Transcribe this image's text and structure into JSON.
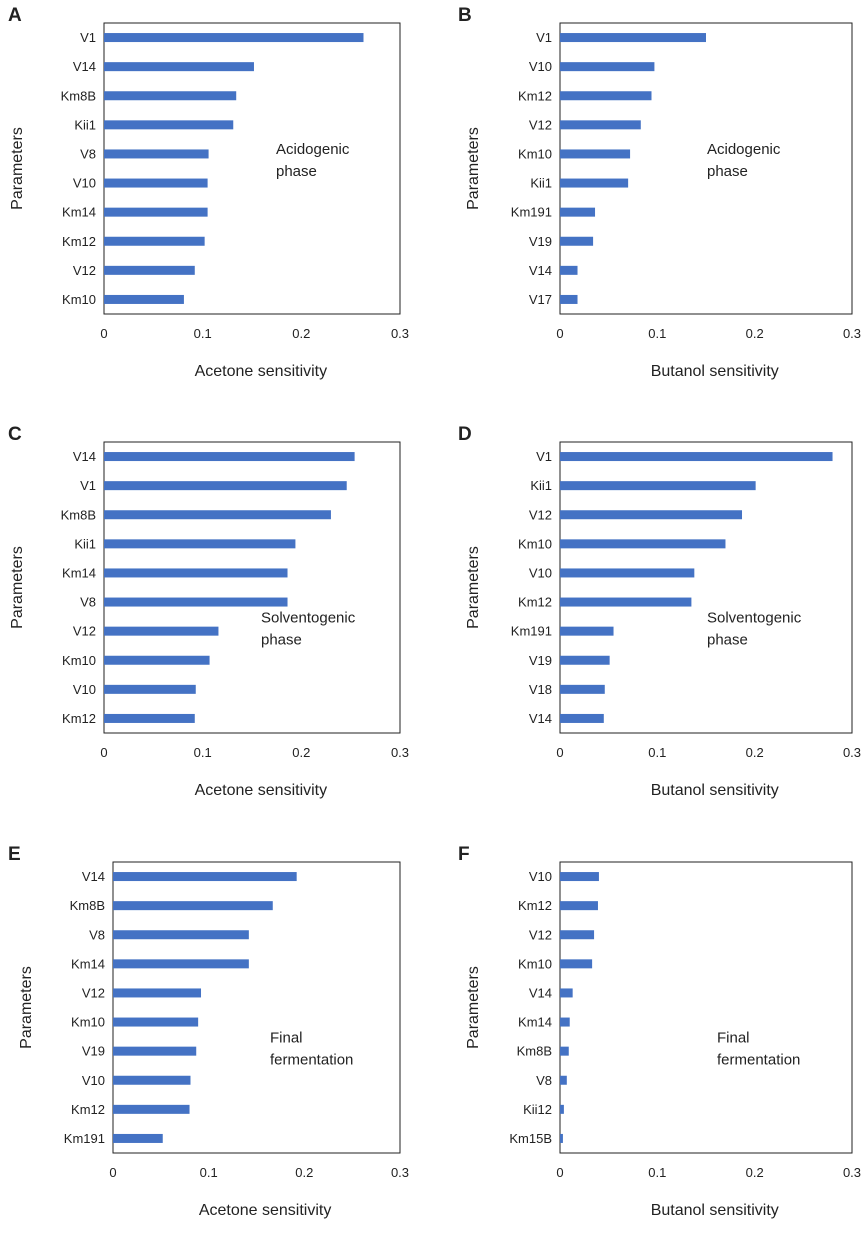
{
  "chart_data": [
    {
      "type": "bar",
      "orientation": "horizontal",
      "panel": "A",
      "categories": [
        "V1",
        "V14",
        "Km8B",
        "Kii1",
        "V8",
        "V10",
        "Km14",
        "Km12",
        "V12",
        "Km10"
      ],
      "values": [
        0.263,
        0.152,
        0.134,
        0.131,
        0.106,
        0.105,
        0.105,
        0.102,
        0.092,
        0.081
      ],
      "xlabel": "Acetone sensitivity",
      "ylabel": "Parameters",
      "xlim": [
        0,
        0.3
      ],
      "xticks": [
        "0",
        "0.1",
        "0.2",
        "0.3"
      ],
      "annotation": [
        "Acidogenic",
        "phase"
      ],
      "color": "#4472c4"
    },
    {
      "type": "bar",
      "orientation": "horizontal",
      "panel": "B",
      "categories": [
        "V1",
        "V10",
        "Km12",
        "V12",
        "Km10",
        "Kii1",
        "Km191",
        "V19",
        "V14",
        "V17"
      ],
      "values": [
        0.15,
        0.097,
        0.094,
        0.083,
        0.072,
        0.07,
        0.036,
        0.034,
        0.018,
        0.018
      ],
      "xlabel": "Butanol sensitivity",
      "ylabel": "Parameters",
      "xlim": [
        0,
        0.3
      ],
      "xticks": [
        "0",
        "0.1",
        "0.2",
        "0.3"
      ],
      "annotation": [
        "Acidogenic",
        "phase"
      ],
      "color": "#4472c4"
    },
    {
      "type": "bar",
      "orientation": "horizontal",
      "panel": "C",
      "categories": [
        "V14",
        "V1",
        "Km8B",
        "Kii1",
        "Km14",
        "V8",
        "V12",
        "Km10",
        "V10",
        "Km12"
      ],
      "values": [
        0.254,
        0.246,
        0.23,
        0.194,
        0.186,
        0.186,
        0.116,
        0.107,
        0.093,
        0.092
      ],
      "xlabel": "Acetone sensitivity",
      "ylabel": "Parameters",
      "xlim": [
        0,
        0.3
      ],
      "xticks": [
        "0",
        "0.1",
        "0.2",
        "0.3"
      ],
      "annotation": [
        "Solventogenic",
        "phase"
      ],
      "color": "#4472c4"
    },
    {
      "type": "bar",
      "orientation": "horizontal",
      "panel": "D",
      "categories": [
        "V1",
        "Kii1",
        "V12",
        "Km10",
        "V10",
        "Km12",
        "Km191",
        "V19",
        "V18",
        "V14"
      ],
      "values": [
        0.28,
        0.201,
        0.187,
        0.17,
        0.138,
        0.135,
        0.055,
        0.051,
        0.046,
        0.045
      ],
      "xlabel": "Butanol sensitivity",
      "ylabel": "Parameters",
      "xlim": [
        0,
        0.3
      ],
      "xticks": [
        "0",
        "0.1",
        "0.2",
        "0.3"
      ],
      "annotation": [
        "Solventogenic",
        "phase"
      ],
      "color": "#4472c4"
    },
    {
      "type": "bar",
      "orientation": "horizontal",
      "panel": "E",
      "categories": [
        "V14",
        "Km8B",
        "V8",
        "Km14",
        "V12",
        "Km10",
        "V19",
        "V10",
        "Km12",
        "Km191"
      ],
      "values": [
        0.192,
        0.167,
        0.142,
        0.142,
        0.092,
        0.089,
        0.087,
        0.081,
        0.08,
        0.052
      ],
      "xlabel": "Acetone sensitivity",
      "ylabel": "Parameters",
      "xlim": [
        0,
        0.3
      ],
      "xticks": [
        "0",
        "0.1",
        "0.2",
        "0.3"
      ],
      "annotation": [
        "Final",
        "fermentation"
      ],
      "color": "#4472c4"
    },
    {
      "type": "bar",
      "orientation": "horizontal",
      "panel": "F",
      "categories": [
        "V10",
        "Km12",
        "V12",
        "Km10",
        "V14",
        "Km14",
        "Km8B",
        "V8",
        "Kii12",
        "Km15B"
      ],
      "values": [
        0.04,
        0.039,
        0.035,
        0.033,
        0.013,
        0.01,
        0.009,
        0.007,
        0.004,
        0.003
      ],
      "xlabel": "Butanol sensitivity",
      "ylabel": "Parameters",
      "xlim": [
        0,
        0.3
      ],
      "xticks": [
        "0",
        "0.1",
        "0.2",
        "0.3"
      ],
      "annotation": [
        "Final",
        "fermentation"
      ],
      "color": "#4472c4"
    }
  ]
}
